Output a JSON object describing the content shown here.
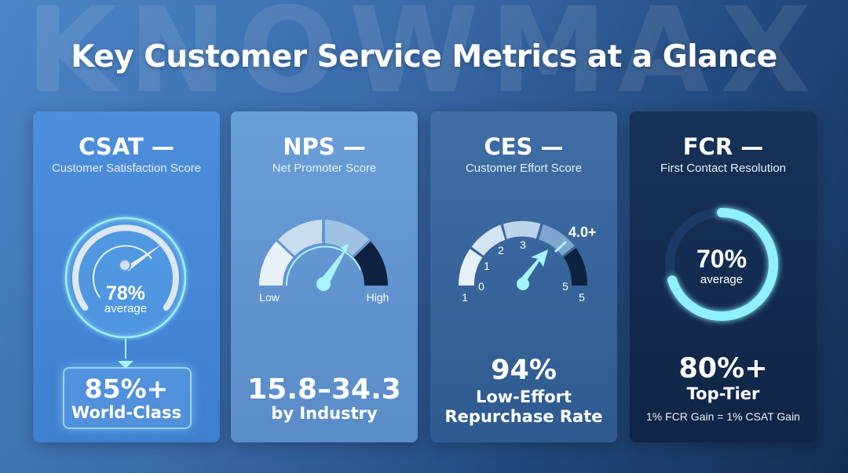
{
  "watermark": "KNOWMAX",
  "title": "Key Customer Service Metrics at a Glance",
  "cards": [
    {
      "id": "csat",
      "title": "CSAT —",
      "subtitle": "Customer Satisfaction Score",
      "gauge_value": "78%",
      "gauge_caption": "average",
      "gauge_level": 0.78,
      "highlight_value": "85%+",
      "highlight_label": "World-Class"
    },
    {
      "id": "nps",
      "title": "NPS —",
      "subtitle": "Net Promoter Score",
      "gauge_low": "Low",
      "gauge_high": "High",
      "highlight_value": "15.8–34.3",
      "highlight_label": "by Industry"
    },
    {
      "id": "ces",
      "title": "CES —",
      "subtitle": "Customer Effort Score",
      "gauge_ticks": [
        "1",
        "0",
        "1",
        "2",
        "3",
        "5",
        "5"
      ],
      "gauge_marker": "4.0+",
      "highlight_value": "94%",
      "highlight_label_1": "Low-Effort",
      "highlight_label_2": "Repurchase Rate"
    },
    {
      "id": "fcr",
      "title": "FCR —",
      "subtitle": "First Contact Resolution",
      "gauge_value": "70%",
      "gauge_caption": "average",
      "gauge_level": 0.7,
      "highlight_value": "80%+",
      "highlight_label": "Top-Tier",
      "footnote": "1% FCR Gain = 1% CSAT Gain"
    }
  ],
  "colors": {
    "glow": "#8ff0ff",
    "needle": "#a6f4ff",
    "dark_segment": "#0f2240"
  }
}
